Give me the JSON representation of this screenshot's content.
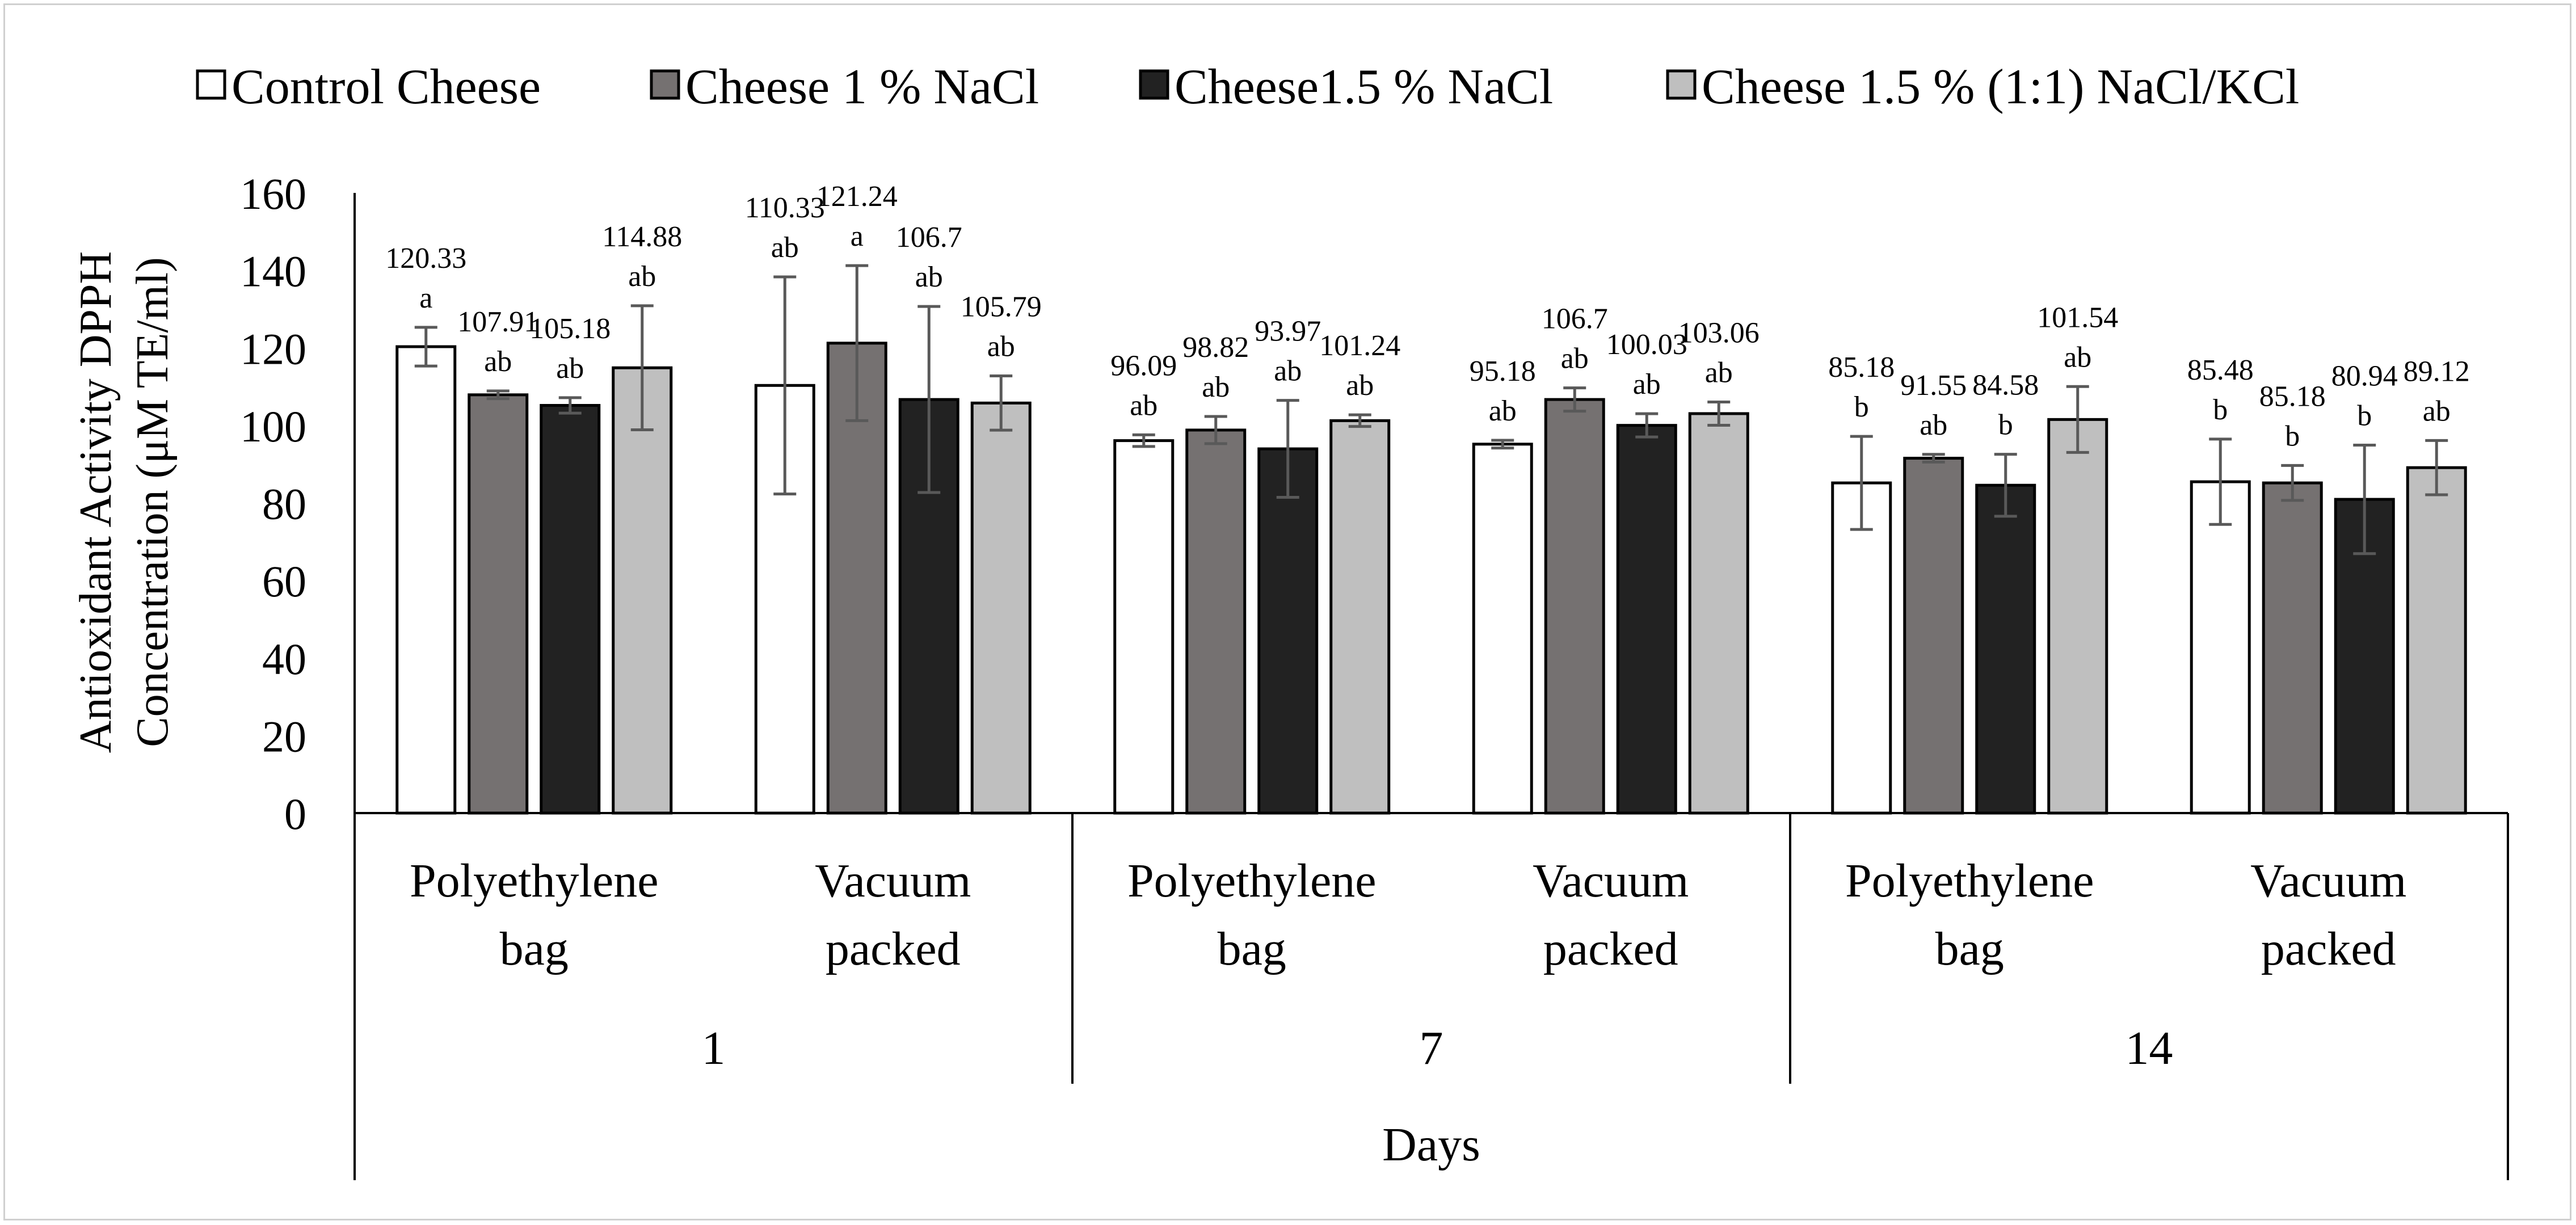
{
  "chart_data": {
    "type": "bar",
    "title": "",
    "ylabel_lines": [
      "Antioxidant Activity DPPH",
      "Concentration (μM TE/ml)"
    ],
    "xlabel": "Days",
    "ylim": [
      0,
      160
    ],
    "yticks": [
      0,
      20,
      40,
      60,
      80,
      100,
      120,
      140,
      160
    ],
    "legend_position": "top",
    "groups": [
      {
        "day": "1",
        "categories": [
          [
            "Polyethylene",
            "bag"
          ],
          [
            "Vacuum",
            "packed"
          ]
        ]
      },
      {
        "day": "7",
        "categories": [
          [
            "Polyethylene",
            "bag"
          ],
          [
            "Vacuum",
            "packed"
          ]
        ]
      },
      {
        "day": "14",
        "categories": [
          [
            "Polyethylene",
            "bag"
          ],
          [
            "Vacuum",
            "packed"
          ]
        ]
      }
    ],
    "series": [
      {
        "name": "Control Cheese",
        "color": "#ffffff",
        "values": [
          120.33,
          110.33,
          96.09,
          95.18,
          85.18,
          85.48
        ],
        "errors": [
          5,
          28,
          1.5,
          1,
          12,
          11
        ],
        "value_labels": [
          "120.33",
          "110.33",
          "96.09",
          "95.18",
          "85.18",
          "85.48"
        ],
        "letters": [
          "a",
          "ab",
          "ab",
          "ab",
          "b",
          "b"
        ]
      },
      {
        "name": "Cheese 1 % NaCl",
        "color": "#757171",
        "values": [
          107.91,
          121.24,
          98.82,
          106.7,
          91.55,
          85.18
        ],
        "errors": [
          1,
          20,
          3.5,
          3,
          1,
          4.5
        ],
        "value_labels": [
          "107.91",
          "121.24",
          "98.82",
          "106.7",
          "91.55",
          "85.18"
        ],
        "letters": [
          "ab",
          "a",
          "ab",
          "ab",
          "ab",
          "b"
        ]
      },
      {
        "name": "Cheese1.5 % NaCl",
        "color": "#222222",
        "values": [
          105.18,
          106.7,
          93.97,
          100.03,
          84.58,
          80.94
        ],
        "errors": [
          2,
          24,
          12.5,
          3,
          8,
          14
        ],
        "value_labels": [
          "105.18",
          "106.7",
          "93.97",
          "100.03",
          "84.58",
          "80.94"
        ],
        "letters": [
          "ab",
          "ab",
          "ab",
          "ab",
          "b",
          "b"
        ]
      },
      {
        "name": "Cheese 1.5 % (1:1) NaCl/KCl",
        "color": "#bfbfbf",
        "values": [
          114.88,
          105.79,
          101.24,
          103.06,
          101.54,
          89.12
        ],
        "errors": [
          16,
          7,
          1.5,
          3,
          8.5,
          7
        ],
        "value_labels": [
          "114.88",
          "105.79",
          "101.24",
          "103.06",
          "101.54",
          "89.12"
        ],
        "letters": [
          "ab",
          "ab",
          "ab",
          "ab",
          "ab",
          "ab"
        ]
      }
    ]
  }
}
